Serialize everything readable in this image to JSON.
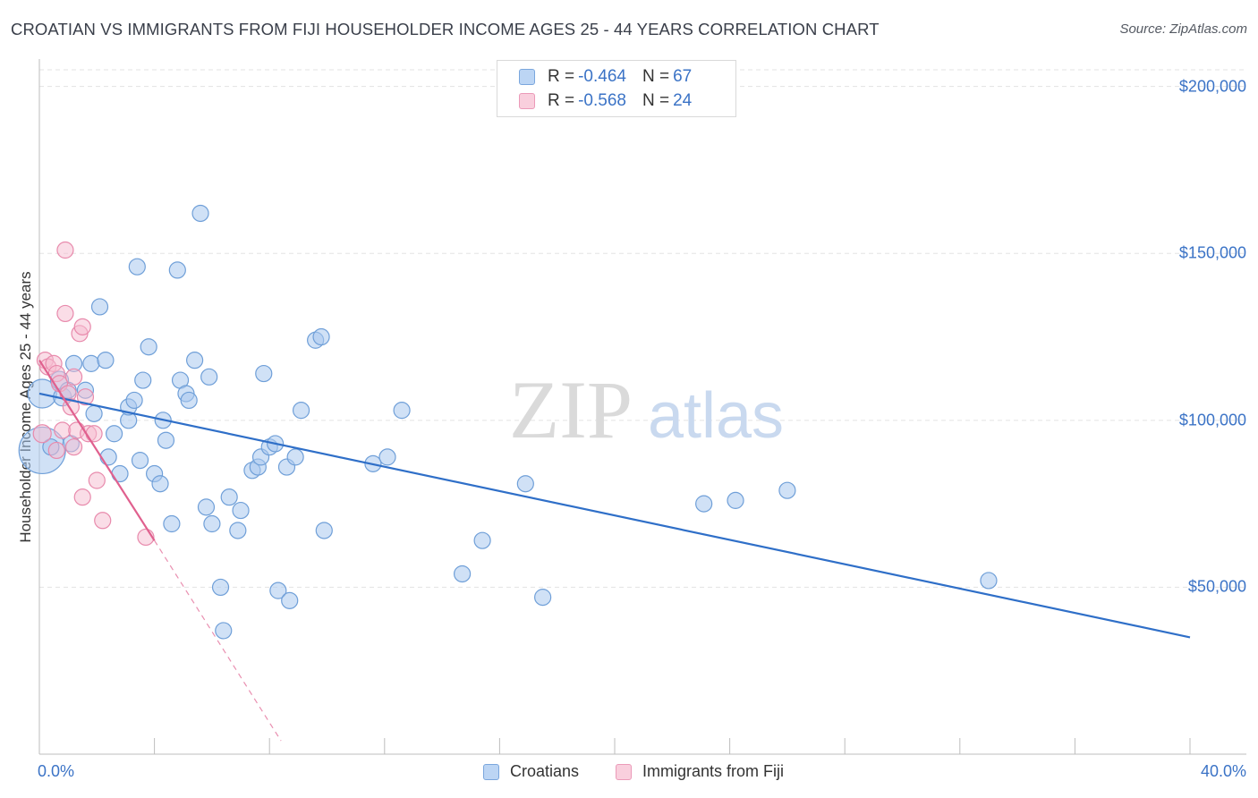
{
  "title": "CROATIAN VS IMMIGRANTS FROM FIJI HOUSEHOLDER INCOME AGES 25 - 44 YEARS CORRELATION CHART",
  "source": "Source: ZipAtlas.com",
  "watermark": {
    "zip": "ZIP",
    "atlas": "atlas"
  },
  "legend": {
    "croatians": {
      "r_label": "R = ",
      "r_value": "-0.464",
      "n_label": "N = ",
      "n_value": "67"
    },
    "fiji": {
      "r_label": "R = ",
      "r_value": "-0.568",
      "n_label": "N = ",
      "n_value": "24"
    }
  },
  "colors": {
    "croatians_fill": "#aac8ef",
    "croatians_stroke": "#6f9fd8",
    "croatians_line": "#2f6fc8",
    "fiji_fill": "#f6bcd0",
    "fiji_stroke": "#e88aac",
    "fiji_line": "#e0608e"
  },
  "chart_data": {
    "type": "scatter",
    "title": "CROATIAN VS IMMIGRANTS FROM FIJI HOUSEHOLDER INCOME AGES 25 - 44 YEARS CORRELATION CHART",
    "xlabel": "",
    "ylabel": "Householder Income Ages 25 - 44 years",
    "xlim": [
      0,
      40
    ],
    "ylim": [
      0,
      205000
    ],
    "x_tick_labels": [
      "0.0%",
      "40.0%"
    ],
    "y_ticks": [
      {
        "value": 50000,
        "label": "$50,000"
      },
      {
        "value": 100000,
        "label": "$100,000"
      },
      {
        "value": 150000,
        "label": "$150,000"
      },
      {
        "value": 200000,
        "label": "$200,000"
      }
    ],
    "grid": true,
    "legend_position": "top-center",
    "series": [
      {
        "name": "Croatians",
        "r": -0.464,
        "n": 67,
        "trend": {
          "x0": 0,
          "y0": 108000,
          "x1": 40,
          "y1": 35000
        },
        "points": [
          [
            0.1,
            91000,
            26
          ],
          [
            0.1,
            108000,
            16
          ],
          [
            0.7,
            112000,
            10
          ],
          [
            0.8,
            107000,
            10
          ],
          [
            1.0,
            109000,
            9
          ],
          [
            1.1,
            93000,
            9
          ],
          [
            1.2,
            117000,
            9
          ],
          [
            1.6,
            109000,
            9
          ],
          [
            1.8,
            117000,
            9
          ],
          [
            1.9,
            102000,
            9
          ],
          [
            2.1,
            134000,
            9
          ],
          [
            2.3,
            118000,
            9
          ],
          [
            2.4,
            89000,
            9
          ],
          [
            2.6,
            96000,
            9
          ],
          [
            2.8,
            84000,
            9
          ],
          [
            3.1,
            100000,
            9
          ],
          [
            3.1,
            104000,
            9
          ],
          [
            3.3,
            106000,
            9
          ],
          [
            3.4,
            146000,
            9
          ],
          [
            3.5,
            88000,
            9
          ],
          [
            3.6,
            112000,
            9
          ],
          [
            3.8,
            122000,
            9
          ],
          [
            4.0,
            84000,
            9
          ],
          [
            4.2,
            81000,
            9
          ],
          [
            4.3,
            100000,
            9
          ],
          [
            4.4,
            94000,
            9
          ],
          [
            4.6,
            69000,
            9
          ],
          [
            4.8,
            145000,
            9
          ],
          [
            4.9,
            112000,
            9
          ],
          [
            5.1,
            108000,
            9
          ],
          [
            5.2,
            106000,
            9
          ],
          [
            5.4,
            118000,
            9
          ],
          [
            5.6,
            162000,
            9
          ],
          [
            5.8,
            74000,
            9
          ],
          [
            5.9,
            113000,
            9
          ],
          [
            6.0,
            69000,
            9
          ],
          [
            6.3,
            50000,
            9
          ],
          [
            6.4,
            37000,
            9
          ],
          [
            6.6,
            77000,
            9
          ],
          [
            6.9,
            67000,
            9
          ],
          [
            7.0,
            73000,
            9
          ],
          [
            7.4,
            85000,
            9
          ],
          [
            7.6,
            86000,
            9
          ],
          [
            7.7,
            89000,
            9
          ],
          [
            7.8,
            114000,
            9
          ],
          [
            8.0,
            92000,
            9
          ],
          [
            8.2,
            93000,
            9
          ],
          [
            8.3,
            49000,
            9
          ],
          [
            8.6,
            86000,
            9
          ],
          [
            8.7,
            46000,
            9
          ],
          [
            8.9,
            89000,
            9
          ],
          [
            9.1,
            103000,
            9
          ],
          [
            9.6,
            124000,
            9
          ],
          [
            9.8,
            125000,
            9
          ],
          [
            9.9,
            67000,
            9
          ],
          [
            11.6,
            87000,
            9
          ],
          [
            12.1,
            89000,
            9
          ],
          [
            12.6,
            103000,
            9
          ],
          [
            14.7,
            54000,
            9
          ],
          [
            15.4,
            64000,
            9
          ],
          [
            16.9,
            81000,
            9
          ],
          [
            17.5,
            47000,
            9
          ],
          [
            23.1,
            75000,
            9
          ],
          [
            24.2,
            76000,
            9
          ],
          [
            26.0,
            79000,
            9
          ],
          [
            33.0,
            52000,
            9
          ],
          [
            0.4,
            92000,
            9
          ]
        ]
      },
      {
        "name": "Immigrants from Fiji",
        "r": -0.568,
        "n": 24,
        "trend": {
          "x0": 0,
          "y0": 118000,
          "x1": 4.0,
          "y1": 64000,
          "dash_x1": 8.4,
          "dash_y1": 4000
        },
        "points": [
          [
            0.1,
            96000,
            10
          ],
          [
            0.2,
            118000,
            9
          ],
          [
            0.3,
            116000,
            9
          ],
          [
            0.5,
            117000,
            9
          ],
          [
            0.6,
            114000,
            9
          ],
          [
            0.6,
            91000,
            9
          ],
          [
            0.7,
            111000,
            9
          ],
          [
            0.8,
            97000,
            9
          ],
          [
            0.9,
            151000,
            9
          ],
          [
            0.9,
            132000,
            9
          ],
          [
            1.0,
            108000,
            9
          ],
          [
            1.1,
            104000,
            9
          ],
          [
            1.2,
            113000,
            9
          ],
          [
            1.2,
            92000,
            9
          ],
          [
            1.3,
            97000,
            9
          ],
          [
            1.4,
            126000,
            9
          ],
          [
            1.5,
            128000,
            9
          ],
          [
            1.5,
            77000,
            9
          ],
          [
            1.6,
            107000,
            9
          ],
          [
            1.7,
            96000,
            9
          ],
          [
            1.9,
            96000,
            9
          ],
          [
            2.0,
            82000,
            9
          ],
          [
            2.2,
            70000,
            9
          ],
          [
            3.7,
            65000,
            9
          ]
        ]
      }
    ]
  },
  "bottom_legend": {
    "croatians_label": "Croatians",
    "fiji_label": "Immigrants from Fiji"
  }
}
